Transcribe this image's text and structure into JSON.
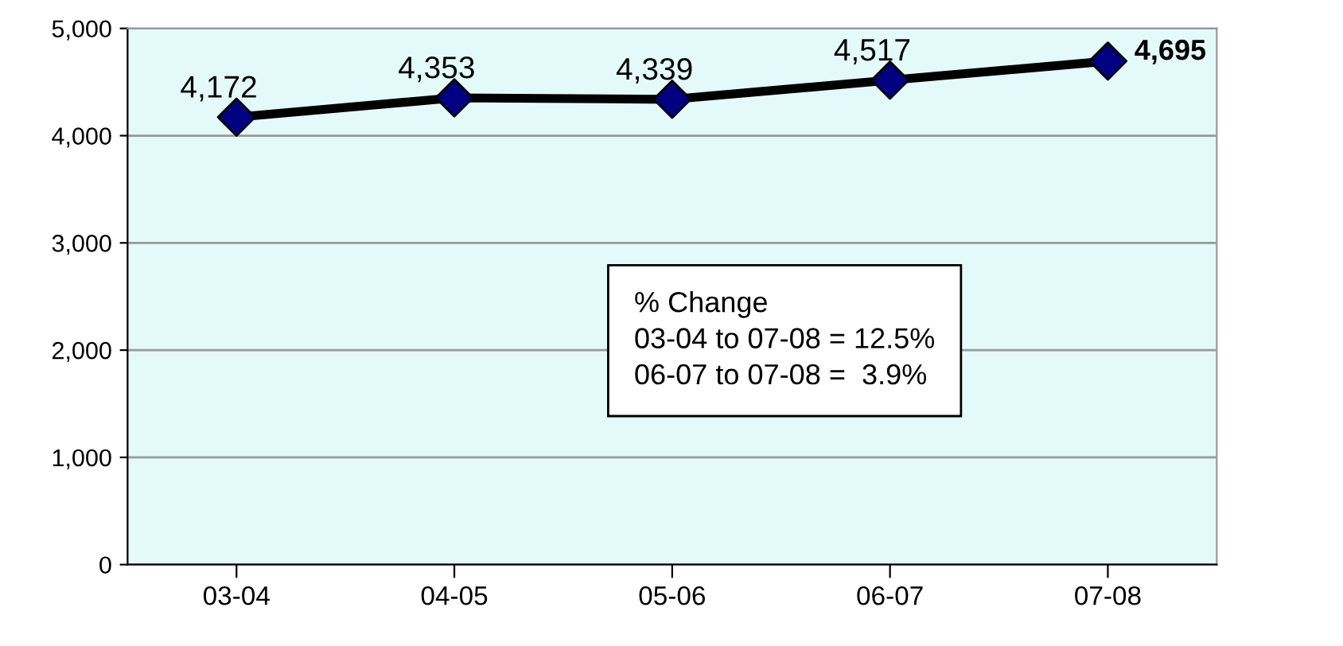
{
  "chart_data": {
    "type": "line",
    "categories": [
      "03-04",
      "04-05",
      "05-06",
      "06-07",
      "07-08"
    ],
    "series": [
      {
        "color": "#000000",
        "colors": [
          "#000080",
          "#000080",
          "#000080",
          "#000080",
          "#000080"
        ],
        "values": [
          4172,
          4353,
          4339,
          4517,
          4695
        ],
        "value_labels": [
          "4,172",
          "4,353",
          "4,339",
          "4,517",
          "4,695"
        ]
      }
    ],
    "ylim": [
      0,
      5000
    ],
    "yticks": [
      0,
      {
        "value": 1000,
        "label": "1,000"
      },
      {
        "value": 2000,
        "label": "2,000"
      },
      {
        "value": 3000,
        "label": "3,000"
      },
      {
        "value": 4000,
        "label": "4,000"
      },
      {
        "value": 5000,
        "label": "5,000"
      }
    ],
    "grid": "y",
    "marker": "diamond",
    "line_style": "solid",
    "annotations": [
      "% Change\n03-04 to 07-08 = 12.5%\n06-07 to 07-08 =  3.9%"
    ]
  }
}
